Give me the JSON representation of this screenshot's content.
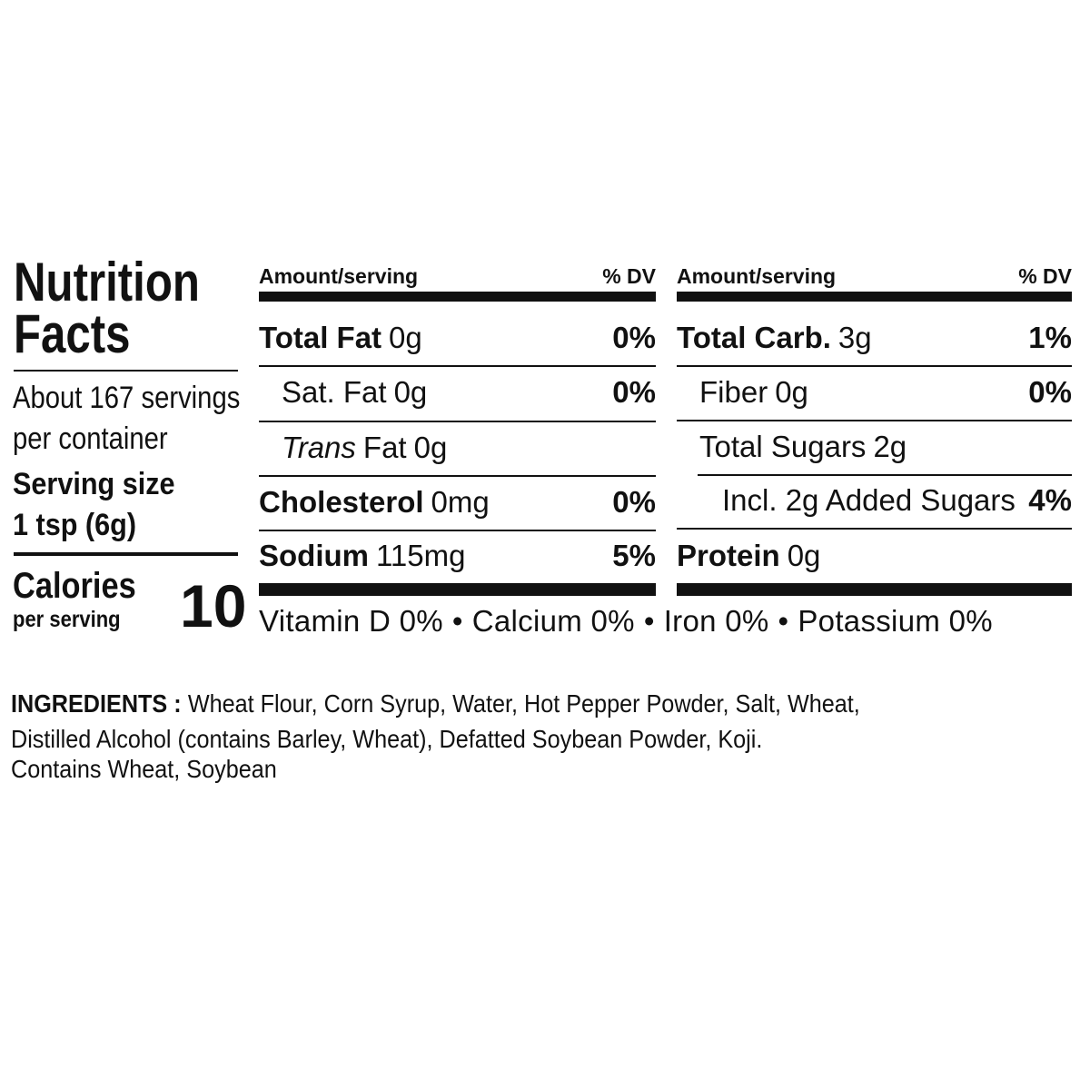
{
  "title": [
    "Nutrition",
    "Facts"
  ],
  "servings_per_container": [
    "About 167 servings",
    "per container"
  ],
  "serving_size": {
    "label": "Serving size",
    "value": "1 tsp (6g)"
  },
  "calories": {
    "label": "Calories",
    "sublabel": "per serving",
    "value": "10"
  },
  "columns": [
    {
      "header": {
        "amount": "Amount/serving",
        "dv": "% DV"
      },
      "rows": [
        {
          "name": "Total Fat",
          "amount": "0g",
          "dv": "0%"
        },
        {
          "name": "Sat. Fat",
          "amount": "0g",
          "dv": "0%"
        },
        {
          "name_italic": "Trans",
          "name": "Fat",
          "amount": "0g"
        },
        {
          "name": "Cholesterol",
          "amount": "0mg",
          "dv": "0%"
        },
        {
          "name": "Sodium",
          "amount": "115mg",
          "dv": "5%"
        }
      ]
    },
    {
      "header": {
        "amount": "Amount/serving",
        "dv": "% DV"
      },
      "rows": [
        {
          "name": "Total Carb.",
          "amount": "3g",
          "dv": "1%"
        },
        {
          "name": "Fiber",
          "amount": "0g",
          "dv": "0%"
        },
        {
          "name": "Total Sugars",
          "amount": "2g"
        },
        {
          "name": "Incl. 2g Added Sugars",
          "dv": "4%"
        },
        {
          "name": "Protein",
          "amount": "0g"
        }
      ]
    }
  ],
  "vitamins": {
    "items": [
      "Vitamin D 0%",
      "Calcium 0%",
      "Iron 0%",
      "Potassium 0%"
    ],
    "separator": "•"
  },
  "ingredients": {
    "label": "INGREDIENTS :",
    "lines": [
      "Wheat Flour, Corn Syrup, Water, Hot Pepper Powder, Salt, Wheat,",
      "Distilled Alcohol (contains Barley, Wheat), Defatted Soybean Powder, Koji."
    ],
    "contains": "Contains Wheat, Soybean"
  }
}
